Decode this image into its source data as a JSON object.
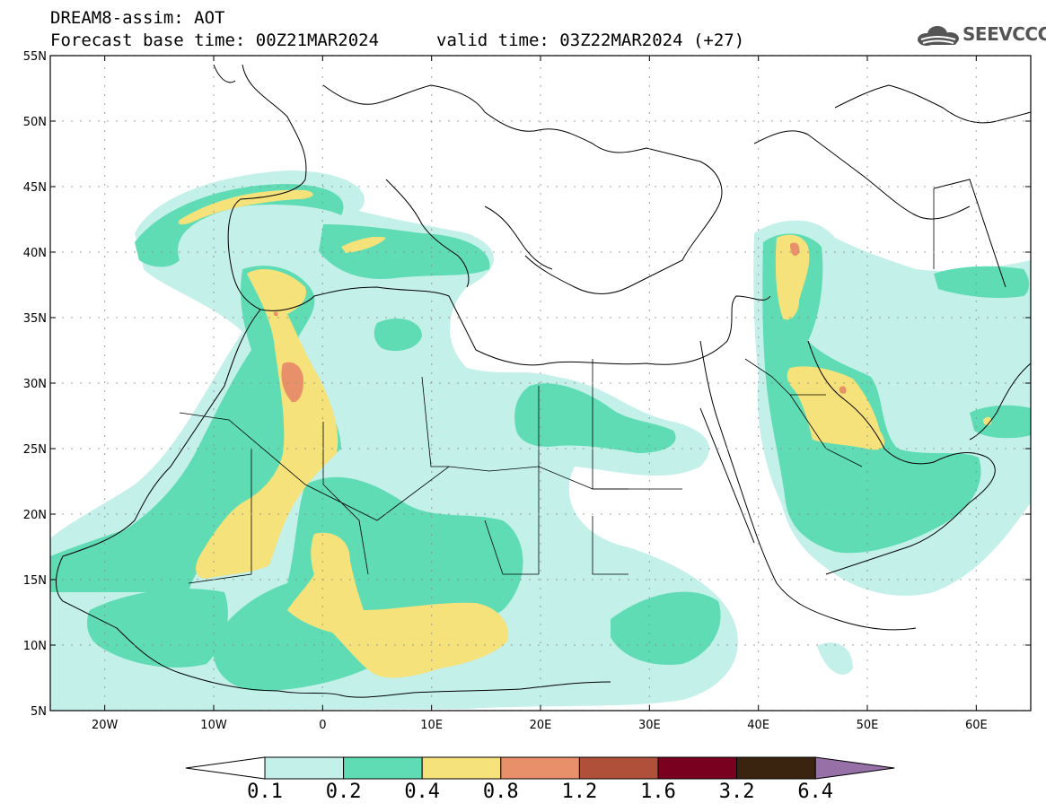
{
  "header": {
    "line1": "DREAM8-assim: AOT",
    "line2": "Forecast base time: 00Z21MAR2024",
    "line3": "valid time: 03Z22MAR2024 (+27)",
    "logo_text": "SEEVCCC"
  },
  "axes": {
    "lat_labels": [
      "55N",
      "50N",
      "45N",
      "40N",
      "35N",
      "30N",
      "25N",
      "20N",
      "15N",
      "10N",
      "5N"
    ],
    "lon_labels": [
      "20W",
      "10W",
      "0",
      "10E",
      "20E",
      "30E",
      "40E",
      "50E",
      "60E"
    ]
  },
  "colorbar": {
    "labels": [
      "0.1",
      "0.2",
      "0.4",
      "0.8",
      "1.2",
      "1.6",
      "3.2",
      "6.4"
    ],
    "colors": [
      "#ffffff",
      "#c4f0ea",
      "#5fdcb4",
      "#f6e27a",
      "#e8906a",
      "#b0503a",
      "#7a0020",
      "#3a2410",
      "#9870a8"
    ]
  },
  "map_colors": {
    "c1": "#c4f0ea",
    "c2": "#5fdcb4",
    "c3": "#f6e27a",
    "c4": "#e8906a"
  }
}
